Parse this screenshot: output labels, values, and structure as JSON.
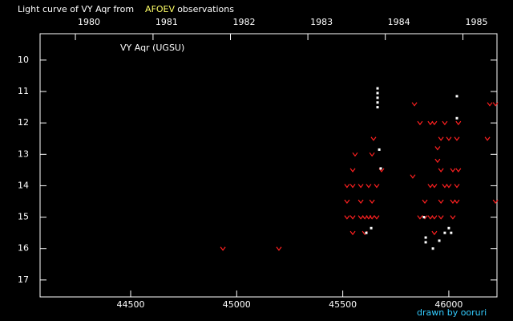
{
  "chart_data": {
    "type": "scatter",
    "title_parts": [
      {
        "text": "Light curve of VY Aqr from",
        "color": "#ffffff"
      },
      {
        "text": "AFOEV",
        "color": "#ffff66"
      },
      {
        "text": "observations",
        "color": "#ffffff"
      }
    ],
    "label": "VY Aqr (UGSU)",
    "credit": "drawn by ooruri",
    "xlim": [
      44073,
      46227
    ],
    "ylim": [
      17.54,
      9.16
    ],
    "xticks": [
      44500,
      45000,
      45500,
      46000
    ],
    "yticks": [
      10,
      11,
      12,
      13,
      14,
      15,
      16,
      17
    ],
    "x2ticks": [
      {
        "value": 44239.5,
        "label": "1980"
      },
      {
        "value": 44605.5,
        "label": "1981"
      },
      {
        "value": 44970.5,
        "label": "1982"
      },
      {
        "value": 45335.5,
        "label": "1983"
      },
      {
        "value": 45700.5,
        "label": "1984"
      },
      {
        "value": 46066.5,
        "label": "1985"
      }
    ],
    "series": [
      {
        "color": "#ff2020",
        "marker": "v",
        "x": [
          44935,
          45199,
          45520,
          45520,
          45520,
          45547,
          45547,
          45547,
          45547,
          45558,
          45585,
          45585,
          45585,
          45604,
          45604,
          45622,
          45622,
          45638,
          45638,
          45638,
          45645,
          45660,
          45660,
          45683,
          45838,
          45830,
          45864,
          45864,
          45887,
          45887,
          45913,
          45913,
          45913,
          45932,
          45932,
          45932,
          45932,
          45947,
          45947,
          45963,
          45963,
          45963,
          45963,
          45981,
          45981,
          46000,
          46000,
          46019,
          46019,
          46019,
          46038,
          46038,
          46038,
          46045,
          46045,
          46182,
          46193,
          46220,
          46220
        ],
        "values": [
          16.0,
          16.0,
          14.0,
          14.5,
          15.0,
          13.5,
          14.0,
          15.0,
          15.5,
          13.0,
          14.0,
          14.5,
          15.0,
          15.0,
          15.5,
          14.0,
          15.0,
          13.0,
          14.5,
          15.0,
          12.5,
          14.0,
          15.0,
          13.5,
          11.4,
          13.7,
          12.0,
          15.0,
          14.5,
          15.0,
          12.0,
          14.0,
          15.0,
          12.0,
          14.0,
          15.0,
          15.5,
          12.8,
          13.2,
          12.5,
          13.5,
          14.5,
          15.0,
          12.0,
          14.0,
          12.5,
          14.0,
          13.5,
          14.5,
          15.0,
          12.5,
          14.0,
          14.5,
          12.0,
          13.5,
          12.5,
          11.4,
          11.4,
          14.5
        ]
      },
      {
        "color": "#ffffff",
        "marker": "dot",
        "x": [
          45664,
          45664,
          45664,
          45664,
          45664,
          45672,
          45679,
          45611,
          45634,
          45891,
          45891,
          45925,
          45955,
          45981,
          46000,
          46011,
          46038,
          46038,
          45883
        ],
        "values": [
          10.9,
          11.05,
          11.2,
          11.35,
          11.5,
          12.85,
          13.45,
          15.5,
          15.35,
          15.65,
          15.8,
          16.0,
          15.75,
          15.5,
          15.35,
          15.5,
          11.15,
          11.85,
          15.0
        ]
      }
    ]
  }
}
